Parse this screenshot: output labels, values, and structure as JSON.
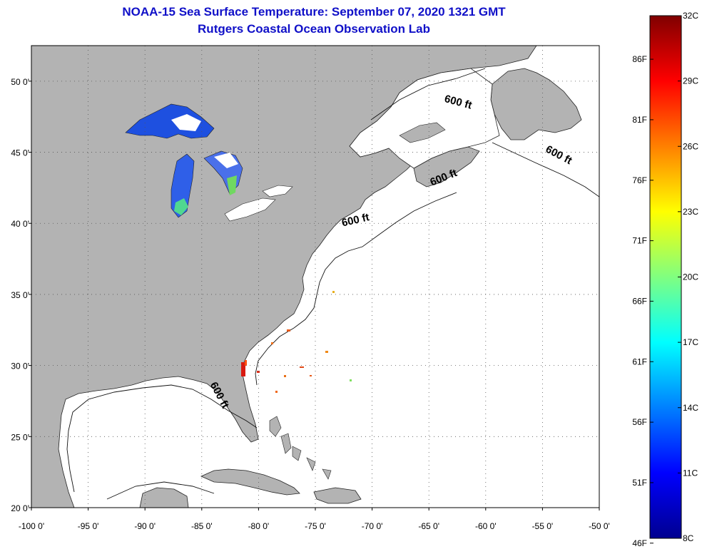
{
  "title": {
    "line1": "NOAA-15 Sea Surface Temperature:  September 07, 2020 1321 GMT",
    "line2": "Rutgers Coastal Ocean Observation Lab"
  },
  "map": {
    "lon_range": [
      -100,
      -50
    ],
    "lat_range": [
      20,
      52.5
    ],
    "x_ticks": [
      {
        "value": -100,
        "label": "-100 0'"
      },
      {
        "value": -95,
        "label": "-95 0'"
      },
      {
        "value": -90,
        "label": "-90 0'"
      },
      {
        "value": -85,
        "label": "-85 0'"
      },
      {
        "value": -80,
        "label": "-80 0'"
      },
      {
        "value": -75,
        "label": "-75 0'"
      },
      {
        "value": -70,
        "label": "-70 0'"
      },
      {
        "value": -65,
        "label": "-65 0'"
      },
      {
        "value": -60,
        "label": "-60 0'"
      },
      {
        "value": -55,
        "label": "-55 0'"
      },
      {
        "value": -50,
        "label": "-50 0'"
      }
    ],
    "y_ticks": [
      {
        "value": 50,
        "label": "50 0'"
      },
      {
        "value": 45,
        "label": "45 0'"
      },
      {
        "value": 40,
        "label": "40 0'"
      },
      {
        "value": 35,
        "label": "35 0'"
      },
      {
        "value": 30,
        "label": "30 0'"
      },
      {
        "value": 25,
        "label": "25 0'"
      },
      {
        "value": 20,
        "label": "20 0'"
      }
    ],
    "contour_labels": [
      {
        "text": "600 ft",
        "lon": -62.5,
        "lat": 48.3,
        "angle": 15
      },
      {
        "text": "600 ft",
        "lon": -53.7,
        "lat": 44.6,
        "angle": 28
      },
      {
        "text": "600 ft",
        "lon": -63.6,
        "lat": 43.0,
        "angle": -22
      },
      {
        "text": "600 ft",
        "lon": -71.4,
        "lat": 40.0,
        "angle": -13
      },
      {
        "text": "600 ft",
        "lon": -83.7,
        "lat": 27.8,
        "angle": 62
      }
    ],
    "colors": {
      "land": "#b3b3b3",
      "ocean": "#ffffff",
      "grid": "#555555",
      "lake_sst": "#1e50e0",
      "coastal_sst": "#d81a10"
    }
  },
  "colorbar": {
    "min_c": 8,
    "max_c": 32,
    "celsius_labels": [
      {
        "value": 32,
        "label": "32C"
      },
      {
        "value": 29,
        "label": "29C"
      },
      {
        "value": 26,
        "label": "26C"
      },
      {
        "value": 23,
        "label": "23C"
      },
      {
        "value": 20,
        "label": "20C"
      },
      {
        "value": 17,
        "label": "17C"
      },
      {
        "value": 14,
        "label": "14C"
      },
      {
        "value": 11,
        "label": "11C"
      },
      {
        "value": 8,
        "label": "8C"
      }
    ],
    "fahrenheit_labels": [
      {
        "value": 86,
        "label": "86F"
      },
      {
        "value": 81,
        "label": "81F"
      },
      {
        "value": 76,
        "label": "76F"
      },
      {
        "value": 71,
        "label": "71F"
      },
      {
        "value": 66,
        "label": "66F"
      },
      {
        "value": 61,
        "label": "61F"
      },
      {
        "value": 56,
        "label": "56F"
      },
      {
        "value": 51,
        "label": "51F"
      },
      {
        "value": 46,
        "label": "46F"
      }
    ],
    "stops": [
      "#00008f",
      "#0000ff",
      "#0080ff",
      "#00ffff",
      "#80ff80",
      "#ffff00",
      "#ff8000",
      "#ff0000",
      "#800000"
    ]
  }
}
